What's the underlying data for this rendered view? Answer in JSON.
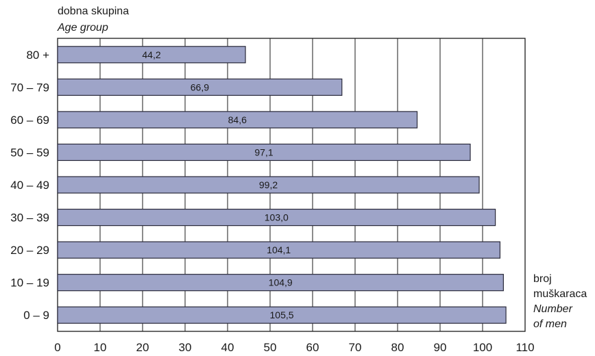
{
  "chart_data": {
    "type": "bar",
    "orientation": "horizontal",
    "ylabel": [
      "dobna skupina",
      "Age group"
    ],
    "xlabel": [
      "broj",
      "muškaraca",
      "Number",
      "of men"
    ],
    "categories": [
      "80 +",
      "70 – 79",
      "60 – 69",
      "50 – 59",
      "40 – 49",
      "30 – 39",
      "20 – 29",
      "10 – 19",
      "0 – 9"
    ],
    "values": [
      44.2,
      66.9,
      84.6,
      97.1,
      99.2,
      103.0,
      104.1,
      104.9,
      105.5
    ],
    "value_labels": [
      "44,2",
      "66,9",
      "84,6",
      "97,1",
      "99,2",
      "103,0",
      "104,1",
      "104,9",
      "105,5"
    ],
    "xticks": [
      "0",
      "10",
      "20",
      "30",
      "40",
      "50",
      "60",
      "70",
      "80",
      "90",
      "100",
      "110"
    ],
    "xlim": [
      0,
      110
    ],
    "grid": true,
    "colors": {
      "bar": "#9ea4c8",
      "bar_stroke": "#2a2a3a",
      "grid": "#1a1a1a"
    }
  }
}
